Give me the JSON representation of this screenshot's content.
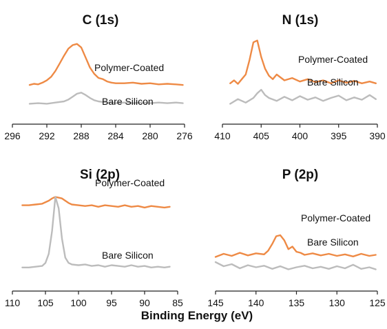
{
  "colors": {
    "polymer": "#ee8a45",
    "bare": "#bcbcbc",
    "axis": "#222222"
  },
  "figure": {
    "xlabel": "Binding Energy (eV)"
  },
  "chart_data": [
    {
      "type": "line",
      "title": "C (1s)",
      "xlabel": "",
      "ylabel": "",
      "xlim": [
        296,
        276
      ],
      "ticks": [
        296,
        292,
        288,
        284,
        280,
        276
      ],
      "series": [
        {
          "name": "Polymer-Coated",
          "x": [
            294.0,
            293.5,
            293.0,
            292.5,
            292.0,
            291.5,
            291.0,
            290.5,
            290.0,
            289.5,
            289.0,
            288.5,
            288.0,
            287.5,
            287.0,
            286.5,
            286.0,
            285.5,
            285.0,
            284.5,
            284.0,
            283.0,
            282.0,
            281.0,
            280.0,
            279.0,
            278.0,
            277.0,
            276.2
          ],
          "y": [
            0.08,
            0.1,
            0.09,
            0.12,
            0.16,
            0.22,
            0.32,
            0.45,
            0.58,
            0.7,
            0.76,
            0.78,
            0.72,
            0.55,
            0.38,
            0.27,
            0.2,
            0.18,
            0.14,
            0.12,
            0.11,
            0.11,
            0.12,
            0.1,
            0.11,
            0.09,
            0.1,
            0.09,
            0.08
          ]
        },
        {
          "name": "Bare Silicon",
          "x": [
            294.0,
            293.0,
            292.0,
            291.0,
            290.0,
            289.5,
            289.0,
            288.5,
            288.0,
            287.5,
            287.0,
            286.5,
            286.0,
            285.0,
            284.0,
            283.0,
            282.0,
            281.0,
            280.0,
            279.0,
            278.0,
            277.0,
            276.2
          ],
          "y": [
            -0.24,
            -0.23,
            -0.24,
            -0.22,
            -0.2,
            -0.17,
            -0.12,
            -0.07,
            -0.05,
            -0.09,
            -0.14,
            -0.18,
            -0.2,
            -0.22,
            -0.23,
            -0.22,
            -0.23,
            -0.22,
            -0.23,
            -0.22,
            -0.23,
            -0.22,
            -0.23
          ]
        }
      ]
    },
    {
      "type": "line",
      "title": "N (1s)",
      "xlabel": "",
      "ylabel": "",
      "xlim": [
        410,
        390
      ],
      "ticks": [
        410,
        405,
        400,
        395,
        390
      ],
      "series": [
        {
          "name": "Polymer-Coated",
          "x": [
            409.0,
            408.5,
            408.0,
            407.5,
            407.0,
            406.5,
            406.0,
            405.5,
            405.0,
            404.5,
            404.0,
            403.5,
            403.0,
            402.0,
            401.0,
            400.0,
            399.0,
            398.0,
            397.0,
            396.0,
            395.0,
            394.0,
            393.0,
            392.0,
            391.0,
            390.2
          ],
          "y": [
            0.05,
            0.1,
            0.04,
            0.12,
            0.2,
            0.45,
            0.75,
            0.78,
            0.5,
            0.3,
            0.18,
            0.12,
            0.2,
            0.1,
            0.14,
            0.08,
            0.12,
            0.07,
            0.1,
            0.05,
            0.1,
            0.06,
            0.09,
            0.05,
            0.08,
            0.05
          ]
        },
        {
          "name": "Bare Silicon",
          "x": [
            409.0,
            408.0,
            407.0,
            406.0,
            405.5,
            405.0,
            404.5,
            404.0,
            403.0,
            402.0,
            401.0,
            400.0,
            399.0,
            398.0,
            397.0,
            396.0,
            395.0,
            394.0,
            393.0,
            392.0,
            391.0,
            390.2
          ],
          "y": [
            -0.3,
            -0.22,
            -0.28,
            -0.2,
            -0.12,
            -0.06,
            -0.15,
            -0.2,
            -0.25,
            -0.18,
            -0.24,
            -0.17,
            -0.23,
            -0.19,
            -0.25,
            -0.2,
            -0.16,
            -0.24,
            -0.19,
            -0.23,
            -0.15,
            -0.22
          ]
        }
      ]
    },
    {
      "type": "line",
      "title": "Si (2p)",
      "xlabel": "",
      "ylabel": "",
      "xlim": [
        110,
        85
      ],
      "ticks": [
        110,
        105,
        100,
        95,
        90,
        85
      ],
      "series": [
        {
          "name": "Polymer-Coated",
          "x": [
            108.5,
            107.5,
            106.5,
            105.5,
            104.5,
            104.0,
            103.5,
            103.0,
            102.5,
            102.0,
            101.5,
            101.0,
            100.0,
            99.0,
            98.0,
            97.0,
            96.0,
            95.0,
            94.0,
            93.0,
            92.0,
            91.0,
            90.0,
            89.0,
            88.0,
            87.0,
            86.2
          ],
          "y": [
            0.84,
            0.84,
            0.85,
            0.86,
            0.9,
            0.93,
            0.95,
            0.94,
            0.93,
            0.9,
            0.87,
            0.85,
            0.84,
            0.83,
            0.84,
            0.82,
            0.84,
            0.83,
            0.82,
            0.84,
            0.82,
            0.83,
            0.81,
            0.83,
            0.82,
            0.81,
            0.82
          ]
        },
        {
          "name": "Bare Silicon",
          "x": [
            108.5,
            107.5,
            106.5,
            105.5,
            105.0,
            104.5,
            104.0,
            103.5,
            103.0,
            102.5,
            102.0,
            101.5,
            101.0,
            100.0,
            99.0,
            98.0,
            97.0,
            96.0,
            95.0,
            94.0,
            93.0,
            92.0,
            91.0,
            90.0,
            89.0,
            88.0,
            87.0,
            86.2
          ],
          "y": [
            0.02,
            0.02,
            0.03,
            0.04,
            0.08,
            0.2,
            0.5,
            0.95,
            0.8,
            0.4,
            0.15,
            0.08,
            0.06,
            0.05,
            0.06,
            0.04,
            0.05,
            0.03,
            0.05,
            0.04,
            0.03,
            0.05,
            0.03,
            0.04,
            0.02,
            0.03,
            0.02,
            0.03
          ]
        }
      ]
    },
    {
      "type": "line",
      "title": "P (2p)",
      "xlabel": "",
      "ylabel": "",
      "xlim": [
        145,
        125
      ],
      "ticks": [
        145,
        140,
        135,
        130,
        125
      ],
      "series": [
        {
          "name": "Polymer-Coated",
          "x": [
            145.0,
            144.0,
            143.0,
            142.0,
            141.0,
            140.0,
            139.0,
            138.5,
            138.0,
            137.5,
            137.0,
            136.5,
            136.0,
            135.5,
            135.0,
            134.5,
            134.0,
            133.0,
            132.0,
            131.0,
            130.0,
            129.0,
            128.0,
            127.0,
            126.0,
            125.2
          ],
          "y": [
            0.3,
            0.36,
            0.32,
            0.38,
            0.33,
            0.37,
            0.35,
            0.42,
            0.55,
            0.7,
            0.72,
            0.62,
            0.45,
            0.5,
            0.4,
            0.38,
            0.34,
            0.37,
            0.33,
            0.36,
            0.32,
            0.35,
            0.31,
            0.36,
            0.32,
            0.34
          ]
        },
        {
          "name": "Bare Silicon",
          "x": [
            145.0,
            144.0,
            143.0,
            142.0,
            141.0,
            140.0,
            139.0,
            138.0,
            137.0,
            136.0,
            135.0,
            134.0,
            133.0,
            132.0,
            131.0,
            130.0,
            129.0,
            128.0,
            127.0,
            126.0,
            125.2
          ],
          "y": [
            0.2,
            0.12,
            0.16,
            0.08,
            0.14,
            0.1,
            0.13,
            0.07,
            0.12,
            0.06,
            0.1,
            0.13,
            0.08,
            0.11,
            0.07,
            0.12,
            0.08,
            0.15,
            0.07,
            0.1,
            0.06
          ]
        }
      ]
    }
  ]
}
